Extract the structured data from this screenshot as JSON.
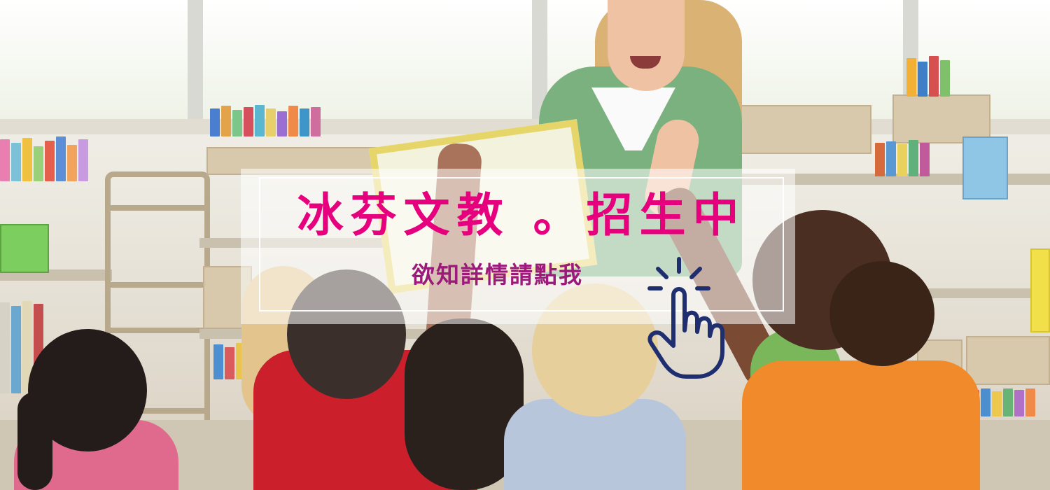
{
  "banner": {
    "headline": "冰芬文教 。招生中",
    "subline": "欲知詳情請點我",
    "pointer_icon": "hand-pointer-click-icon",
    "colors": {
      "headline": "#e6007e",
      "subline": "#9b1a7a",
      "pointer_outline": "#1f2e6e"
    }
  }
}
